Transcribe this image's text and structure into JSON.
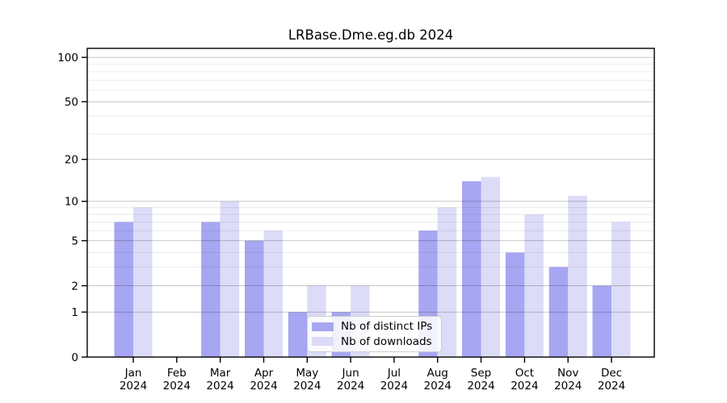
{
  "title": "LRBase.Dme.eg.db 2024",
  "colors": {
    "ips": "#a6a6f2",
    "downloads": "#dcdcf8",
    "axis": "#000000",
    "grid_major": "rgba(0,0,0,0.22)",
    "grid_minor": "rgba(0,0,0,0.08)",
    "legend_bg": "rgba(255,255,255,0.85)",
    "legend_border": "#cccccc"
  },
  "legend": {
    "items": [
      {
        "label": "Nb of distinct IPs",
        "key": "ips"
      },
      {
        "label": "Nb of downloads",
        "key": "downloads"
      }
    ]
  },
  "chart_data": {
    "type": "bar",
    "title": "LRBase.Dme.eg.db 2024",
    "categories": [
      "Jan 2024",
      "Feb 2024",
      "Mar 2024",
      "Apr 2024",
      "May 2024",
      "Jun 2024",
      "Jul 2024",
      "Aug 2024",
      "Sep 2024",
      "Oct 2024",
      "Nov 2024",
      "Dec 2024"
    ],
    "x_tick_months": [
      "Jan",
      "Feb",
      "Mar",
      "Apr",
      "May",
      "Jun",
      "Jul",
      "Aug",
      "Sep",
      "Oct",
      "Nov",
      "Dec"
    ],
    "x_tick_year": "2024",
    "series": [
      {
        "name": "Nb of distinct IPs",
        "color": "#a6a6f2",
        "values": [
          7,
          0,
          7,
          5,
          1,
          1,
          0,
          6,
          14,
          4,
          3,
          2
        ]
      },
      {
        "name": "Nb of downloads",
        "color": "#dcdcf8",
        "values": [
          9,
          0,
          10,
          6,
          2,
          2,
          0,
          9,
          15,
          8,
          11,
          7
        ]
      }
    ],
    "xlabel": "",
    "ylabel": "",
    "yscale": "log1p",
    "ylim": [
      0,
      115
    ],
    "yticks": [
      0,
      1,
      2,
      5,
      10,
      20,
      50,
      100
    ],
    "yticks_minor": [
      3,
      4,
      6,
      7,
      8,
      9,
      30,
      40,
      60,
      70,
      80,
      90
    ],
    "grid": "on",
    "legend_position": "lower center"
  }
}
